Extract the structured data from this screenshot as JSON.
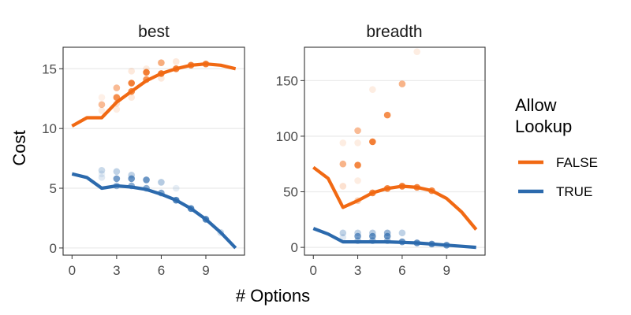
{
  "chart_data": {
    "type": "line",
    "xlabel": "# Options",
    "ylabel": "Cost",
    "legend": {
      "title_lines": [
        "Allow",
        "Lookup"
      ],
      "entries": [
        {
          "label": "FALSE",
          "color": "#f16913"
        },
        {
          "label": "TRUE",
          "color": "#2c6aad"
        }
      ],
      "position": "right"
    },
    "grid": "horizontal major only",
    "facets": [
      {
        "title": "best",
        "xlim": [
          -0.6,
          11.6
        ],
        "ylim": [
          -0.6,
          16.8
        ],
        "xticks": [
          0,
          3,
          6,
          9
        ],
        "yticks": [
          0,
          5,
          10,
          15
        ],
        "series": [
          {
            "name": "FALSE",
            "color": "#f16913",
            "x": [
              0,
              1,
              2,
              3,
              4,
              5,
              6,
              7,
              8,
              9,
              10,
              11
            ],
            "y": [
              10.2,
              10.9,
              10.9,
              12.2,
              13.1,
              14.0,
              14.6,
              15.0,
              15.3,
              15.4,
              15.3,
              15.0
            ]
          },
          {
            "name": "TRUE",
            "color": "#2c6aad",
            "x": [
              0,
              1,
              2,
              3,
              4,
              5,
              6,
              7,
              8,
              9,
              10,
              11
            ],
            "y": [
              6.2,
              5.9,
              5.0,
              5.2,
              5.1,
              4.9,
              4.5,
              4.0,
              3.3,
              2.4,
              1.3,
              0.0
            ]
          }
        ],
        "points": [
          {
            "series": "FALSE",
            "x": 2,
            "y": 12.0,
            "opacity": 0.45
          },
          {
            "series": "FALSE",
            "x": 2,
            "y": 12.6,
            "opacity": 0.1
          },
          {
            "series": "FALSE",
            "x": 2,
            "y": 11.5,
            "opacity": 0.12
          },
          {
            "series": "FALSE",
            "x": 3,
            "y": 12.6,
            "opacity": 0.75
          },
          {
            "series": "FALSE",
            "x": 3,
            "y": 13.4,
            "opacity": 0.45
          },
          {
            "series": "FALSE",
            "x": 3,
            "y": 12.1,
            "opacity": 0.2
          },
          {
            "series": "FALSE",
            "x": 3,
            "y": 11.6,
            "opacity": 0.12
          },
          {
            "series": "FALSE",
            "x": 4,
            "y": 13.8,
            "opacity": 0.85
          },
          {
            "series": "FALSE",
            "x": 4,
            "y": 13.1,
            "opacity": 0.8
          },
          {
            "series": "FALSE",
            "x": 4,
            "y": 14.8,
            "opacity": 0.15
          },
          {
            "series": "FALSE",
            "x": 4,
            "y": 12.6,
            "opacity": 0.15
          },
          {
            "series": "FALSE",
            "x": 5,
            "y": 14.7,
            "opacity": 0.85
          },
          {
            "series": "FALSE",
            "x": 5,
            "y": 14.1,
            "opacity": 0.7
          },
          {
            "series": "FALSE",
            "x": 5,
            "y": 15.0,
            "opacity": 0.12
          },
          {
            "series": "FALSE",
            "x": 6,
            "y": 14.6,
            "opacity": 0.9
          },
          {
            "series": "FALSE",
            "x": 6,
            "y": 15.5,
            "opacity": 0.55
          },
          {
            "series": "FALSE",
            "x": 6,
            "y": 14.2,
            "opacity": 0.15
          },
          {
            "series": "FALSE",
            "x": 7,
            "y": 15.0,
            "opacity": 0.85
          },
          {
            "series": "FALSE",
            "x": 7,
            "y": 15.6,
            "opacity": 0.15
          },
          {
            "series": "FALSE",
            "x": 8,
            "y": 15.3,
            "opacity": 0.85
          },
          {
            "series": "FALSE",
            "x": 9,
            "y": 15.4,
            "opacity": 0.85
          },
          {
            "series": "TRUE",
            "x": 2,
            "y": 6.5,
            "opacity": 0.25
          },
          {
            "series": "TRUE",
            "x": 2,
            "y": 5.9,
            "opacity": 0.15
          },
          {
            "series": "TRUE",
            "x": 2,
            "y": 6.2,
            "opacity": 0.1
          },
          {
            "series": "TRUE",
            "x": 3,
            "y": 6.4,
            "opacity": 0.3
          },
          {
            "series": "TRUE",
            "x": 3,
            "y": 5.8,
            "opacity": 0.65
          },
          {
            "series": "TRUE",
            "x": 3,
            "y": 5.2,
            "opacity": 0.45
          },
          {
            "series": "TRUE",
            "x": 4,
            "y": 6.1,
            "opacity": 0.3
          },
          {
            "series": "TRUE",
            "x": 4,
            "y": 5.8,
            "opacity": 0.7
          },
          {
            "series": "TRUE",
            "x": 4,
            "y": 5.2,
            "opacity": 0.55
          },
          {
            "series": "TRUE",
            "x": 5,
            "y": 5.7,
            "opacity": 0.7
          },
          {
            "series": "TRUE",
            "x": 5,
            "y": 5.0,
            "opacity": 0.55
          },
          {
            "series": "TRUE",
            "x": 6,
            "y": 5.5,
            "opacity": 0.35
          },
          {
            "series": "TRUE",
            "x": 6,
            "y": 4.6,
            "opacity": 0.6
          },
          {
            "series": "TRUE",
            "x": 7,
            "y": 4.0,
            "opacity": 0.8
          },
          {
            "series": "TRUE",
            "x": 7,
            "y": 5.0,
            "opacity": 0.12
          },
          {
            "series": "TRUE",
            "x": 8,
            "y": 3.3,
            "opacity": 0.8
          },
          {
            "series": "TRUE",
            "x": 9,
            "y": 2.4,
            "opacity": 0.8
          },
          {
            "series": "TRUE",
            "x": 10,
            "y": 1.3,
            "opacity": 0.25
          }
        ]
      },
      {
        "title": "breadth",
        "xlim": [
          -0.6,
          11.6
        ],
        "ylim": [
          -7,
          180
        ],
        "xticks": [
          0,
          3,
          6,
          9
        ],
        "yticks": [
          0,
          50,
          100,
          150
        ],
        "series": [
          {
            "name": "FALSE",
            "color": "#f16913",
            "x": [
              0,
              1,
              2,
              3,
              4,
              5,
              6,
              7,
              8,
              9,
              10,
              11
            ],
            "y": [
              72,
              62,
              36,
              42,
              49,
              53,
              55,
              54,
              51,
              44,
              32,
              16
            ]
          },
          {
            "name": "TRUE",
            "color": "#2c6aad",
            "x": [
              0,
              1,
              2,
              3,
              4,
              5,
              6,
              7,
              8,
              9,
              10,
              11
            ],
            "y": [
              17,
              12,
              5,
              5,
              5,
              5,
              4.5,
              4,
              3,
              2,
              1,
              0
            ]
          }
        ],
        "points": [
          {
            "series": "FALSE",
            "x": 2,
            "y": 94,
            "opacity": 0.12
          },
          {
            "series": "FALSE",
            "x": 2,
            "y": 75,
            "opacity": 0.5
          },
          {
            "series": "FALSE",
            "x": 2,
            "y": 55,
            "opacity": 0.2
          },
          {
            "series": "FALSE",
            "x": 3,
            "y": 105,
            "opacity": 0.45
          },
          {
            "series": "FALSE",
            "x": 3,
            "y": 94,
            "opacity": 0.12
          },
          {
            "series": "FALSE",
            "x": 3,
            "y": 74,
            "opacity": 0.8
          },
          {
            "series": "FALSE",
            "x": 3,
            "y": 60,
            "opacity": 0.12
          },
          {
            "series": "FALSE",
            "x": 3,
            "y": 42,
            "opacity": 0.3
          },
          {
            "series": "FALSE",
            "x": 4,
            "y": 142,
            "opacity": 0.12
          },
          {
            "series": "FALSE",
            "x": 4,
            "y": 95,
            "opacity": 0.85
          },
          {
            "series": "FALSE",
            "x": 4,
            "y": 49,
            "opacity": 0.8
          },
          {
            "series": "FALSE",
            "x": 5,
            "y": 119,
            "opacity": 0.75
          },
          {
            "series": "FALSE",
            "x": 5,
            "y": 53,
            "opacity": 0.8
          },
          {
            "series": "FALSE",
            "x": 6,
            "y": 147,
            "opacity": 0.5
          },
          {
            "series": "FALSE",
            "x": 6,
            "y": 55,
            "opacity": 0.85
          },
          {
            "series": "FALSE",
            "x": 7,
            "y": 176,
            "opacity": 0.12
          },
          {
            "series": "FALSE",
            "x": 7,
            "y": 54,
            "opacity": 0.8
          },
          {
            "series": "FALSE",
            "x": 8,
            "y": 51,
            "opacity": 0.8
          },
          {
            "series": "TRUE",
            "x": 2,
            "y": 13,
            "opacity": 0.3
          },
          {
            "series": "TRUE",
            "x": 2,
            "y": 9,
            "opacity": 0.15
          },
          {
            "series": "TRUE",
            "x": 3,
            "y": 13,
            "opacity": 0.3
          },
          {
            "series": "TRUE",
            "x": 3,
            "y": 10,
            "opacity": 0.65
          },
          {
            "series": "TRUE",
            "x": 3,
            "y": 6,
            "opacity": 0.35
          },
          {
            "series": "TRUE",
            "x": 4,
            "y": 13,
            "opacity": 0.35
          },
          {
            "series": "TRUE",
            "x": 4,
            "y": 10,
            "opacity": 0.7
          },
          {
            "series": "TRUE",
            "x": 4,
            "y": 6,
            "opacity": 0.45
          },
          {
            "series": "TRUE",
            "x": 5,
            "y": 13,
            "opacity": 0.5
          },
          {
            "series": "TRUE",
            "x": 5,
            "y": 10,
            "opacity": 0.7
          },
          {
            "series": "TRUE",
            "x": 5,
            "y": 6,
            "opacity": 0.4
          },
          {
            "series": "TRUE",
            "x": 6,
            "y": 13,
            "opacity": 0.3
          },
          {
            "series": "TRUE",
            "x": 6,
            "y": 5,
            "opacity": 0.7
          },
          {
            "series": "TRUE",
            "x": 7,
            "y": 4,
            "opacity": 0.75
          },
          {
            "series": "TRUE",
            "x": 8,
            "y": 3,
            "opacity": 0.75
          },
          {
            "series": "TRUE",
            "x": 9,
            "y": 2,
            "opacity": 0.7
          }
        ]
      }
    ]
  }
}
